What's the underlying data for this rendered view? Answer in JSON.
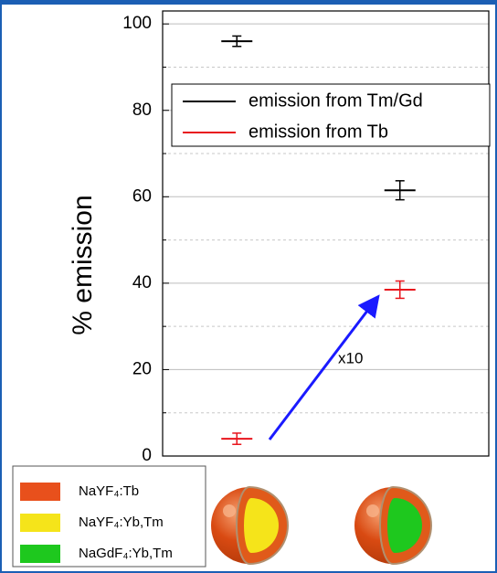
{
  "chart_data": {
    "type": "errorbar",
    "ylabel": "% emission",
    "categories": [
      null,
      null
    ],
    "series": [
      {
        "name": "emission from Tm/Gd",
        "color": "#000000",
        "values": [
          96,
          61.5
        ],
        "errors": [
          1.2,
          2.2
        ]
      },
      {
        "name": "emission from Tb",
        "color": "#e8141c",
        "values": [
          4,
          38.5
        ],
        "errors": [
          1.3,
          2
        ]
      }
    ],
    "ylim": [
      0,
      103
    ],
    "yticks": [
      0,
      20,
      40,
      60,
      80,
      100
    ],
    "minor_yticks": [
      10,
      30,
      50,
      70,
      90
    ],
    "grid": true,
    "legend": "upper right",
    "annotations": [
      {
        "text": "x10",
        "color": "#1a1aff"
      }
    ]
  },
  "materials": [
    {
      "label": "NaYF₄:Tb",
      "color": "#e8501c"
    },
    {
      "label": "NaYF₄:Yb,Tm",
      "color": "#f5e41a"
    },
    {
      "label": "NaGdF₄:Yb,Tm",
      "color": "#1ec81e"
    }
  ]
}
